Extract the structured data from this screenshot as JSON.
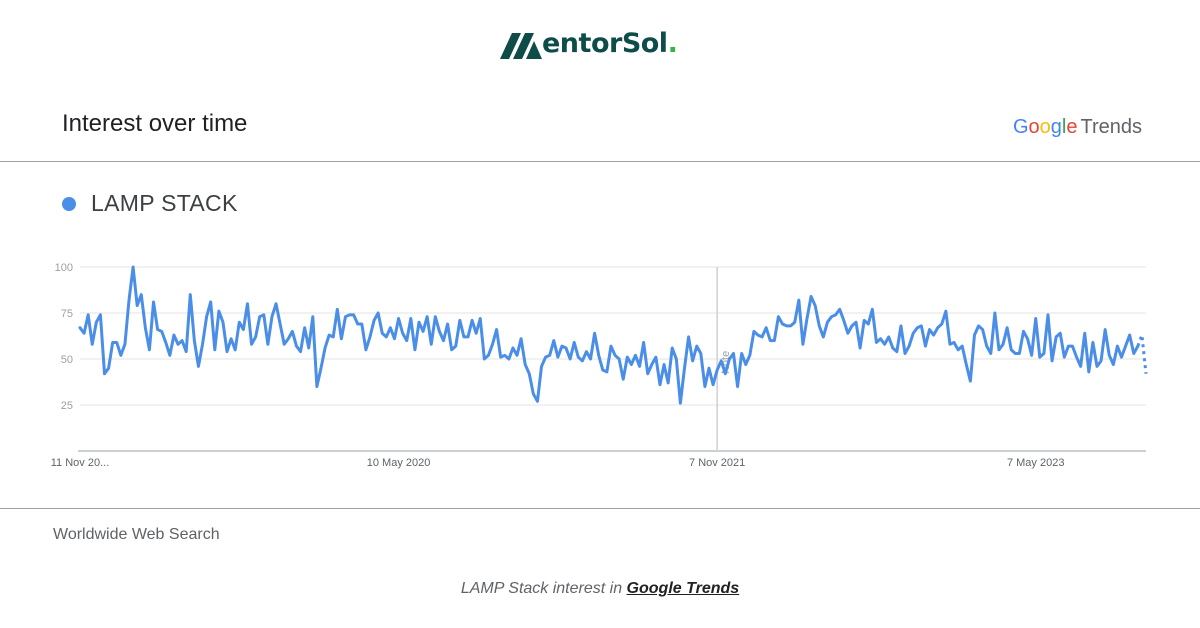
{
  "brand": {
    "name_main": "MentorSol",
    "name_prefix": "entor",
    "name_suffix": "Sol",
    "name_dot": ".",
    "color": "#0e4c4a",
    "dot_color": "#3cb043"
  },
  "card": {
    "title": "Interest over time",
    "provider_logo": {
      "letters": [
        "G",
        "o",
        "o",
        "g",
        "l",
        "e"
      ],
      "colors": [
        "#4285f4",
        "#ea4335",
        "#fbbc05",
        "#4285f4",
        "#34a853",
        "#ea4335"
      ],
      "suffix": "Trends"
    }
  },
  "legend": {
    "label": "LAMP STACK",
    "color": "#4a8ee8"
  },
  "footer": {
    "region": "Worldwide Web Search",
    "caption_prefix": "LAMP Stack interest in ",
    "caption_link": "Google Trends"
  },
  "chart_data": {
    "type": "line",
    "title": "",
    "xlabel": "",
    "ylabel": "",
    "ylim": [
      0,
      100
    ],
    "y_ticks": [
      25,
      50,
      75,
      100
    ],
    "grid": true,
    "x_start": "2018-11-11",
    "x_step": "1 week",
    "x_ticks": [
      {
        "index": 0,
        "label": "11 Nov 20..."
      },
      {
        "index": 78,
        "label": "10 May 2020"
      },
      {
        "index": 156,
        "label": "7 Nov 2021"
      },
      {
        "index": 234,
        "label": "7 May 2023"
      }
    ],
    "annotation": {
      "index": 156,
      "label": "Note"
    },
    "partial_last_points": 2,
    "series": [
      {
        "name": "LAMP STACK",
        "color": "#4a8ee8",
        "values": [
          67,
          64,
          74,
          58,
          70,
          74,
          42,
          45,
          59,
          59,
          52,
          58,
          82,
          100,
          79,
          85,
          67,
          55,
          81,
          66,
          65,
          59,
          52,
          63,
          58,
          60,
          54,
          85,
          60,
          46,
          58,
          73,
          81,
          55,
          76,
          70,
          54,
          61,
          55,
          70,
          66,
          80,
          58,
          62,
          73,
          74,
          58,
          73,
          80,
          69,
          58,
          61,
          65,
          57,
          54,
          67,
          56,
          73,
          35,
          45,
          56,
          63,
          62,
          77,
          61,
          73,
          74,
          74,
          69,
          69,
          55,
          62,
          71,
          75,
          64,
          62,
          67,
          61,
          72,
          64,
          60,
          72,
          55,
          70,
          65,
          73,
          58,
          73,
          65,
          60,
          69,
          55,
          57,
          71,
          62,
          62,
          71,
          64,
          72,
          50,
          52,
          58,
          66,
          51,
          52,
          50,
          56,
          52,
          61,
          47,
          42,
          31,
          27,
          46,
          51,
          52,
          60,
          51,
          57,
          56,
          50,
          59,
          51,
          49,
          54,
          50,
          64,
          52,
          44,
          43,
          57,
          52,
          50,
          39,
          51,
          47,
          52,
          46,
          59,
          42,
          47,
          51,
          36,
          47,
          37,
          56,
          50,
          26,
          45,
          62,
          49,
          57,
          53,
          35,
          45,
          36,
          44,
          49,
          42,
          50,
          53,
          35,
          53,
          47,
          52,
          65,
          63,
          62,
          67,
          60,
          60,
          73,
          69,
          68,
          68,
          70,
          82,
          58,
          72,
          84,
          79,
          68,
          62,
          70,
          73,
          74,
          77,
          71,
          64,
          68,
          70,
          56,
          71,
          69,
          77,
          59,
          61,
          58,
          62,
          56,
          54,
          68,
          53,
          57,
          64,
          67,
          68,
          57,
          66,
          63,
          67,
          69,
          76,
          58,
          59,
          55,
          57,
          47,
          38,
          63,
          68,
          66,
          57,
          53,
          75,
          55,
          58,
          67,
          55,
          53,
          53,
          65,
          61,
          52,
          72,
          51,
          53,
          74,
          49,
          62,
          64,
          51,
          57,
          57,
          51,
          46,
          64,
          43,
          59,
          46,
          49,
          66,
          52,
          47,
          57,
          51,
          57,
          63,
          53,
          57,
          63,
          42
        ]
      }
    ]
  }
}
